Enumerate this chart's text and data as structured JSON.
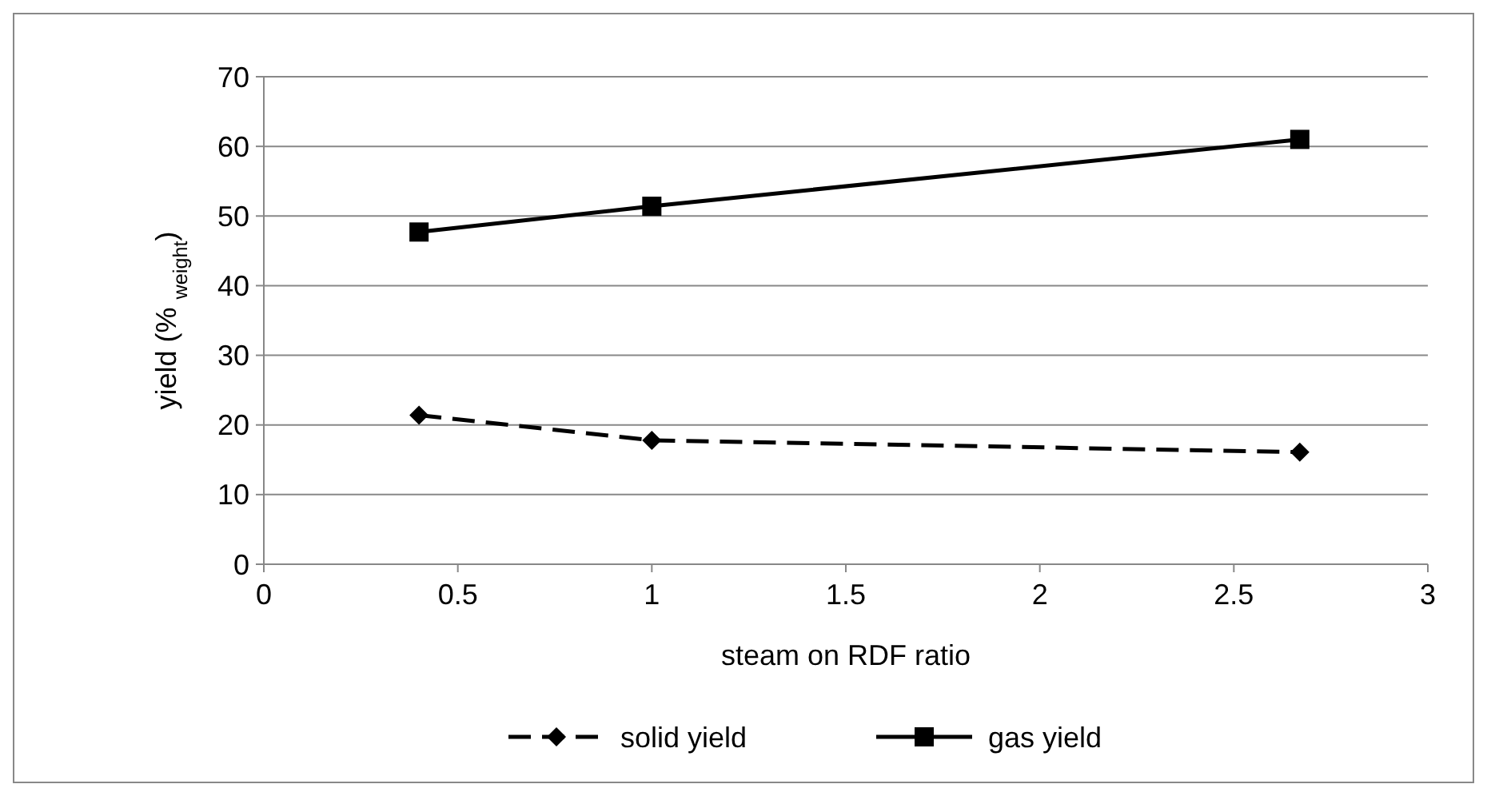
{
  "chart_data": {
    "type": "line",
    "xlabel": "steam on RDF ratio",
    "ylabel": "yield (% $_{weight}$)",
    "xlim": [
      0,
      3
    ],
    "xticks": [
      0,
      0.5,
      1,
      1.5,
      2,
      2.5,
      3
    ],
    "ylim": [
      0,
      70
    ],
    "yticks": [
      0,
      10,
      20,
      30,
      40,
      50,
      60,
      70
    ],
    "grid": "y",
    "legend": "bottom",
    "series": [
      {
        "name": "solid yield",
        "color": "#000000",
        "x": [
          0.4,
          1,
          2.67
        ],
        "values": [
          21.4,
          17.8,
          16.1
        ],
        "marker": "diamond",
        "line_style": "dashed"
      },
      {
        "name": "gas yield",
        "color": "#000000",
        "x": [
          0.4,
          1,
          2.67
        ],
        "values": [
          47.7,
          51.4,
          61
        ],
        "marker": "square",
        "line_style": "solid"
      }
    ]
  }
}
